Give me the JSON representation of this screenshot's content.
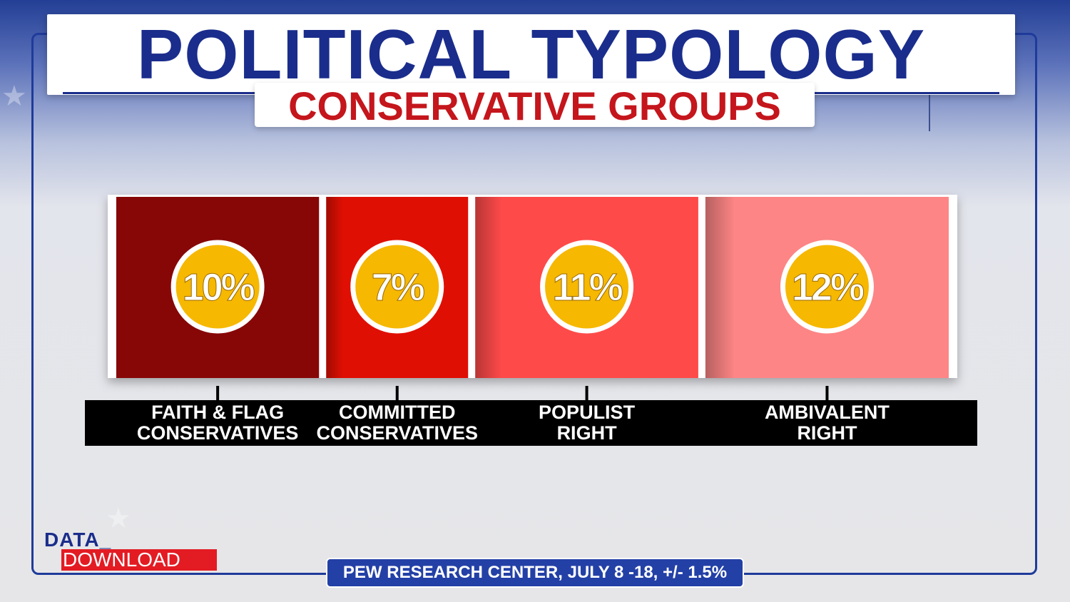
{
  "header": {
    "title": "POLITICAL TYPOLOGY",
    "subtitle": "CONSERVATIVE GROUPS"
  },
  "colors": {
    "title": "#1a2d8c",
    "subtitle": "#c4161c",
    "badge": "#f6b800",
    "segments": [
      "#870707",
      "#e00f03",
      "#ff4a4a",
      "#fd8585"
    ]
  },
  "chart_data": {
    "type": "bar",
    "orientation": "horizontal-stacked",
    "categories": [
      "FAITH & FLAG\nCONSERVATIVES",
      "COMMITTED\nCONSERVATIVES",
      "POPULIST\nRIGHT",
      "AMBIVALENT\nRIGHT"
    ],
    "category_lines": [
      [
        "FAITH & FLAG",
        "CONSERVATIVES"
      ],
      [
        "COMMITTED",
        "CONSERVATIVES"
      ],
      [
        "POPULIST",
        "RIGHT"
      ],
      [
        "AMBIVALENT",
        "RIGHT"
      ]
    ],
    "values": [
      10,
      7,
      11,
      12
    ],
    "value_labels": [
      "10%",
      "7%",
      "11%",
      "12%"
    ],
    "title": "CONSERVATIVE GROUPS"
  },
  "branding": {
    "logo_top": "DATA_",
    "logo_bottom": "DOWNLOAD"
  },
  "source": "PEW RESEARCH CENTER, JULY 8 -18, +/- 1.5%"
}
